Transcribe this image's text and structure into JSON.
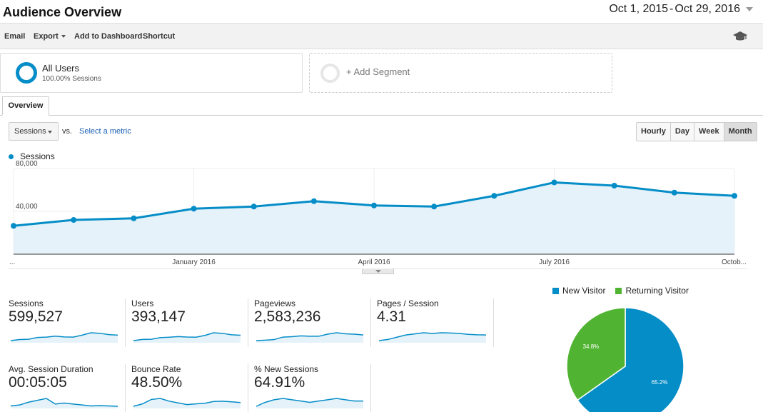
{
  "header": {
    "title": "Audience Overview",
    "date_start": "Oct 1, 2015",
    "date_sep": "-",
    "date_end": "Oct 29, 2016"
  },
  "toolbar": {
    "email": "Email",
    "export": "Export",
    "add_to_dashboard": "Add to Dashboard",
    "shortcut": "Shortcut",
    "help_icon": "graduation-cap-icon"
  },
  "segments": {
    "active_name": "All Users",
    "active_sub": "100.00% Sessions",
    "add_label": "+ Add Segment"
  },
  "tabs": {
    "overview": "Overview"
  },
  "controls": {
    "metric": "Sessions",
    "vs": "vs.",
    "select_metric": "Select a metric",
    "granularity": [
      "Hourly",
      "Day",
      "Week",
      "Month"
    ],
    "active_granularity": "Month"
  },
  "chart_data": {
    "type": "area",
    "series": [
      {
        "name": "Sessions",
        "values": [
          26500,
          32000,
          33500,
          42500,
          44500,
          49500,
          45500,
          44500,
          54500,
          67000,
          64000,
          57500,
          54500
        ]
      }
    ],
    "ylim": [
      0,
      80000
    ],
    "y_ticks": [
      40000,
      80000
    ],
    "y_tick_labels": [
      "40,000",
      "80,000"
    ],
    "x_tick_labels": [
      "...",
      "January 2016",
      "April 2016",
      "July 2016",
      "Octob..."
    ],
    "x_tick_points": [
      0,
      3,
      6,
      9,
      12
    ],
    "color": "#058dc7",
    "fill": "#e5f2fa"
  },
  "metrics": [
    {
      "label": "Sessions",
      "value": "599,527",
      "spark": [
        26500,
        32000,
        33500,
        42500,
        44500,
        49500,
        45500,
        44500,
        54500,
        67000,
        64000,
        57500,
        54500
      ]
    },
    {
      "label": "Users",
      "value": "393,147",
      "spark": [
        25000,
        30000,
        31000,
        38000,
        40000,
        43000,
        41000,
        40000,
        48000,
        60000,
        57000,
        51000,
        49000
      ]
    },
    {
      "label": "Pageviews",
      "value": "2,583,236",
      "spark": [
        22000,
        24000,
        27000,
        39000,
        41000,
        45000,
        43000,
        43000,
        53000,
        60000,
        55000,
        53000,
        49000
      ]
    },
    {
      "label": "Pages / Session",
      "value": "4.31",
      "spark": [
        4.1,
        4.15,
        4.25,
        4.35,
        4.4,
        4.45,
        4.42,
        4.45,
        4.44,
        4.42,
        4.38,
        4.36,
        4.35
      ]
    },
    {
      "label": "Avg. Session Duration",
      "value": "00:05:05",
      "spark": [
        290,
        295,
        310,
        320,
        330,
        300,
        305,
        300,
        295,
        290,
        292,
        290,
        288
      ]
    },
    {
      "label": "Bounce Rate",
      "value": "48.50%",
      "spark": [
        47.5,
        48.2,
        49.5,
        49.8,
        49.0,
        48.5,
        48.0,
        48.2,
        48.4,
        48.9,
        49.0,
        48.8,
        48.6
      ]
    },
    {
      "label": "% New Sessions",
      "value": "64.91%",
      "spark": [
        64.5,
        64.8,
        65.0,
        65.1,
        65.0,
        64.9,
        64.8,
        64.9,
        65.0,
        65.1,
        65.0,
        64.9,
        64.9
      ]
    }
  ],
  "pie": {
    "slices": [
      {
        "name": "New Visitor",
        "value": 65.2,
        "label": "65.2%",
        "color": "#058dc7"
      },
      {
        "name": "Returning Visitor",
        "value": 34.8,
        "label": "34.8%",
        "color": "#50b432"
      }
    ]
  }
}
